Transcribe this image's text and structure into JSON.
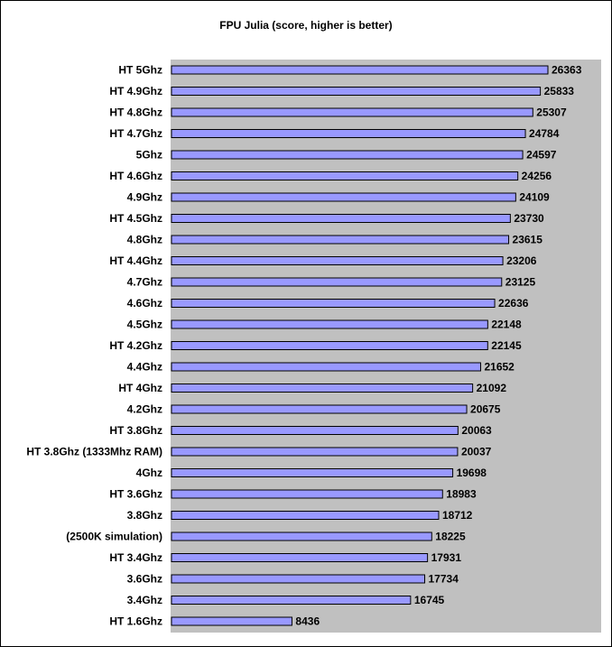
{
  "chart_data": {
    "type": "bar",
    "orientation": "horizontal",
    "title": "FPU Julia (score, higher is better)",
    "xlabel": "",
    "ylabel": "",
    "xlim": [
      0,
      26363
    ],
    "grid": false,
    "legend": "none",
    "colors": {
      "bar": "#9999ff",
      "plot_area": "#c0c0c0",
      "bar_border": "#000000"
    },
    "categories": [
      "HT 5Ghz",
      "HT 4.9Ghz",
      "HT 4.8Ghz",
      "HT 4.7Ghz",
      "5Ghz",
      "HT 4.6Ghz",
      "4.9Ghz",
      "HT 4.5Ghz",
      "4.8Ghz",
      "HT 4.4Ghz",
      "4.7Ghz",
      "4.6Ghz",
      "4.5Ghz",
      "HT 4.2Ghz",
      "4.4Ghz",
      "HT 4Ghz",
      "4.2Ghz",
      "HT 3.8Ghz",
      "HT 3.8Ghz (1333Mhz RAM)",
      "4Ghz",
      "HT 3.6Ghz",
      "3.8Ghz",
      "(2500K simulation)",
      "HT 3.4Ghz",
      "3.6Ghz",
      "3.4Ghz",
      "HT 1.6Ghz"
    ],
    "values": [
      26363,
      25833,
      25307,
      24784,
      24597,
      24256,
      24109,
      23730,
      23615,
      23206,
      23125,
      22636,
      22148,
      22145,
      21652,
      21092,
      20675,
      20063,
      20037,
      19698,
      18983,
      18712,
      18225,
      17931,
      17734,
      16745,
      8436
    ]
  }
}
